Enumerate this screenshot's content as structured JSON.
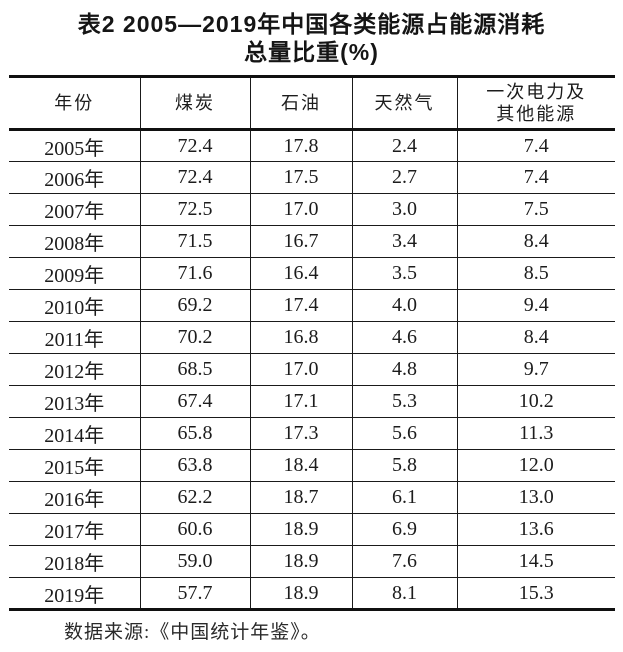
{
  "title": {
    "line1": "表2 2005—2019年中国各类能源占能源消耗",
    "line2": "总量比重(%)"
  },
  "table": {
    "headers": [
      "年份",
      "煤炭",
      "石油",
      "天然气",
      "一次电力及\n其他能源"
    ],
    "rows": [
      [
        "2005年",
        "72.4",
        "17.8",
        "2.4",
        "7.4"
      ],
      [
        "2006年",
        "72.4",
        "17.5",
        "2.7",
        "7.4"
      ],
      [
        "2007年",
        "72.5",
        "17.0",
        "3.0",
        "7.5"
      ],
      [
        "2008年",
        "71.5",
        "16.7",
        "3.4",
        "8.4"
      ],
      [
        "2009年",
        "71.6",
        "16.4",
        "3.5",
        "8.5"
      ],
      [
        "2010年",
        "69.2",
        "17.4",
        "4.0",
        "9.4"
      ],
      [
        "2011年",
        "70.2",
        "16.8",
        "4.6",
        "8.4"
      ],
      [
        "2012年",
        "68.5",
        "17.0",
        "4.8",
        "9.7"
      ],
      [
        "2013年",
        "67.4",
        "17.1",
        "5.3",
        "10.2"
      ],
      [
        "2014年",
        "65.8",
        "17.3",
        "5.6",
        "11.3"
      ],
      [
        "2015年",
        "63.8",
        "18.4",
        "5.8",
        "12.0"
      ],
      [
        "2016年",
        "62.2",
        "18.7",
        "6.1",
        "13.0"
      ],
      [
        "2017年",
        "60.6",
        "18.9",
        "6.9",
        "13.6"
      ],
      [
        "2018年",
        "59.0",
        "18.9",
        "7.6",
        "14.5"
      ],
      [
        "2019年",
        "57.7",
        "18.9",
        "8.1",
        "15.3"
      ]
    ]
  },
  "source_note": "数据来源:《中国统计年鉴》。",
  "colors": {
    "text": "#1c1c1c",
    "border": "#101010",
    "background": "#ffffff"
  }
}
